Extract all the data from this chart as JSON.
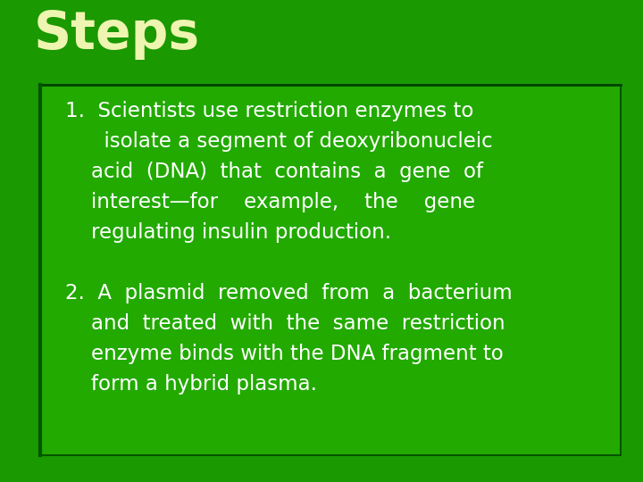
{
  "background_color": "#1a9900",
  "title": "Steps",
  "title_color": "#eef5b0",
  "title_fontsize": 42,
  "text_color": "#ffffff",
  "body_fontsize": 16.5,
  "box_facecolor": "#22aa00",
  "box_border_color": "#004400",
  "topline_color": "#004400",
  "left_bar_color": "#005500",
  "item1_lines": [
    "1.  Scientists use restriction enzymes to",
    "      isolate a segment of deoxyribonucleic",
    "    acid  (DNA)  that  contains  a  gene  of",
    "    interest—for    example,    the    gene",
    "    regulating insulin production."
  ],
  "item2_lines": [
    "2.  A  plasmid  removed  from  a  bacterium",
    "    and  treated  with  the  same  restriction",
    "    enzyme binds with the DNA fragment to",
    "    form a hybrid plasma."
  ]
}
